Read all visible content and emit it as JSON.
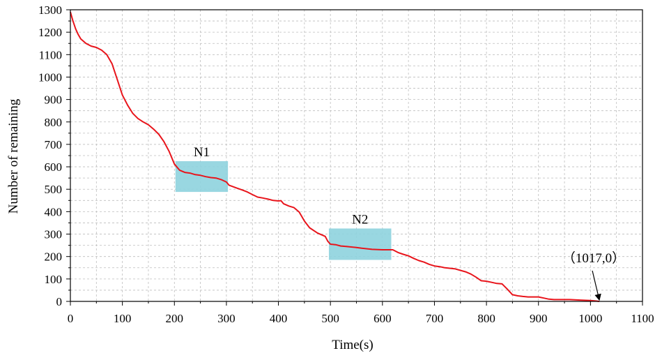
{
  "chart_data": {
    "type": "line",
    "xlabel": "Time(s)",
    "ylabel": "Number of remaining",
    "xlim": [
      0,
      1100
    ],
    "ylim": [
      0,
      1300
    ],
    "xticks": [
      0,
      100,
      200,
      300,
      400,
      500,
      600,
      700,
      800,
      900,
      1000,
      1100
    ],
    "yticks": [
      0,
      100,
      200,
      300,
      400,
      500,
      600,
      700,
      800,
      900,
      1000,
      1100,
      1200,
      1300
    ],
    "grid": true,
    "series": [
      {
        "color": "#e8141b",
        "points": [
          [
            0,
            1290
          ],
          [
            5,
            1250
          ],
          [
            10,
            1215
          ],
          [
            15,
            1190
          ],
          [
            20,
            1170
          ],
          [
            30,
            1150
          ],
          [
            40,
            1138
          ],
          [
            50,
            1132
          ],
          [
            60,
            1120
          ],
          [
            70,
            1100
          ],
          [
            80,
            1060
          ],
          [
            90,
            990
          ],
          [
            100,
            920
          ],
          [
            110,
            875
          ],
          [
            120,
            838
          ],
          [
            130,
            815
          ],
          [
            140,
            800
          ],
          [
            150,
            787
          ],
          [
            160,
            768
          ],
          [
            170,
            745
          ],
          [
            180,
            712
          ],
          [
            190,
            668
          ],
          [
            200,
            612
          ],
          [
            210,
            585
          ],
          [
            220,
            575
          ],
          [
            230,
            572
          ],
          [
            240,
            565
          ],
          [
            250,
            562
          ],
          [
            260,
            556
          ],
          [
            270,
            552
          ],
          [
            280,
            550
          ],
          [
            290,
            543
          ],
          [
            300,
            532
          ],
          [
            305,
            518
          ],
          [
            320,
            505
          ],
          [
            330,
            497
          ],
          [
            340,
            488
          ],
          [
            350,
            476
          ],
          [
            360,
            465
          ],
          [
            370,
            461
          ],
          [
            380,
            456
          ],
          [
            390,
            450
          ],
          [
            400,
            448
          ],
          [
            405,
            449
          ],
          [
            410,
            435
          ],
          [
            420,
            425
          ],
          [
            430,
            418
          ],
          [
            440,
            398
          ],
          [
            450,
            358
          ],
          [
            460,
            328
          ],
          [
            475,
            305
          ],
          [
            490,
            290
          ],
          [
            495,
            268
          ],
          [
            500,
            255
          ],
          [
            510,
            253
          ],
          [
            520,
            247
          ],
          [
            530,
            245
          ],
          [
            550,
            240
          ],
          [
            560,
            237
          ],
          [
            580,
            232
          ],
          [
            600,
            230
          ],
          [
            620,
            230
          ],
          [
            630,
            218
          ],
          [
            640,
            210
          ],
          [
            650,
            203
          ],
          [
            660,
            192
          ],
          [
            670,
            182
          ],
          [
            680,
            175
          ],
          [
            690,
            165
          ],
          [
            700,
            158
          ],
          [
            710,
            155
          ],
          [
            720,
            150
          ],
          [
            740,
            145
          ],
          [
            760,
            132
          ],
          [
            770,
            122
          ],
          [
            780,
            108
          ],
          [
            790,
            92
          ],
          [
            800,
            90
          ],
          [
            810,
            85
          ],
          [
            820,
            80
          ],
          [
            830,
            78
          ],
          [
            840,
            55
          ],
          [
            850,
            30
          ],
          [
            860,
            25
          ],
          [
            870,
            22
          ],
          [
            880,
            20
          ],
          [
            900,
            20
          ],
          [
            910,
            15
          ],
          [
            920,
            10
          ],
          [
            930,
            8
          ],
          [
            960,
            8
          ],
          [
            980,
            6
          ],
          [
            1000,
            4
          ],
          [
            1010,
            2
          ],
          [
            1017,
            0
          ]
        ]
      }
    ],
    "highlights": [
      {
        "label": "N1",
        "x": [
          202,
          303
        ],
        "y": [
          488,
          625
        ],
        "color": "#8ed3de"
      },
      {
        "label": "N2",
        "x": [
          497,
          617
        ],
        "y": [
          185,
          325
        ],
        "color": "#8ed3de"
      }
    ],
    "annotations": [
      {
        "text": "（1017,0）",
        "points_to": [
          1017,
          0
        ]
      }
    ]
  }
}
